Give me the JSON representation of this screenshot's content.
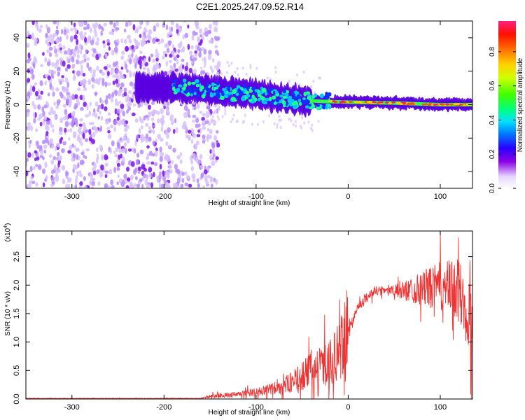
{
  "title": "C2E1.2025.247.09.52.R14",
  "chart_data": [
    {
      "type": "heatmap",
      "xlabel": "Height of straight line (km)",
      "ylabel": "Frequency (Hz)",
      "xlim": [
        -350,
        135
      ],
      "ylim": [
        -50,
        50
      ],
      "xticks": [
        -300,
        -200,
        -100,
        0,
        100
      ],
      "yticks": [
        -40,
        -20,
        0,
        20,
        40
      ],
      "grid": false,
      "colorbar": {
        "label": "Normalized spectral amplitude",
        "ticks": [
          "0.0",
          "0.2",
          "0.4",
          "0.6",
          "0.8"
        ],
        "range": [
          0,
          0.98
        ]
      },
      "trend": [
        {
          "x": -220,
          "y": 10
        },
        {
          "x": -170,
          "y": 10
        },
        {
          "x": -140,
          "y": 8
        },
        {
          "x": -100,
          "y": 6
        },
        {
          "x": -60,
          "y": 3
        },
        {
          "x": -30,
          "y": 2
        },
        {
          "x": 0,
          "y": 1.5
        },
        {
          "x": 50,
          "y": 1
        },
        {
          "x": 100,
          "y": 0
        },
        {
          "x": 135,
          "y": 0
        }
      ],
      "noise_region_x": [
        -350,
        -165
      ]
    },
    {
      "type": "line",
      "xlabel": "Height of straight line (km)",
      "ylabel": "SNR (10 * v/v)",
      "yscale_label": "(x10",
      "yscale_exp": "4",
      "yscale_close": ")",
      "xlim": [
        -350,
        135
      ],
      "ylim": [
        0,
        2.95
      ],
      "xticks": [
        -300,
        -200,
        -100,
        0,
        100
      ],
      "yticks": [
        "0.0",
        "0.5",
        "1.0",
        "1.5",
        "2.0",
        "2.5"
      ],
      "grid": false,
      "color": "#ee3333",
      "series": [
        {
          "x": [
            -350,
            -300,
            -250,
            -200,
            -160,
            -150,
            -120,
            -100,
            -80,
            -60,
            -40,
            -20,
            -10,
            0,
            10,
            20,
            30,
            40,
            50,
            60,
            80,
            100,
            120,
            135
          ],
          "values": [
            0.01,
            0.01,
            0.01,
            0.01,
            0.01,
            0.05,
            0.08,
            0.12,
            0.18,
            0.3,
            0.5,
            0.65,
            0.8,
            1.2,
            1.6,
            1.8,
            1.9,
            1.92,
            1.9,
            1.9,
            1.95,
            1.98,
            1.9,
            1.3
          ]
        }
      ]
    }
  ]
}
